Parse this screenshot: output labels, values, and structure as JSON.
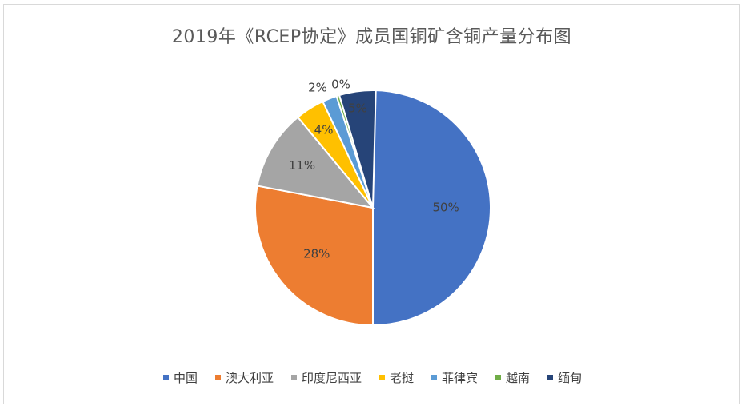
{
  "chart_data": {
    "type": "pie",
    "title": "2019年《RCEP协定》成员国铜矿含铜产量分布图",
    "categories": [
      "中国",
      "澳大利亚",
      "印度尼西亚",
      "老挝",
      "菲律宾",
      "越南",
      "缅甸"
    ],
    "values": [
      50,
      28,
      11,
      4,
      2,
      0,
      5
    ],
    "data_labels": [
      "50%",
      "28%",
      "11%",
      "4%",
      "2%",
      "0%",
      "5%"
    ],
    "colors": [
      "#4472C4",
      "#ED7D31",
      "#A5A5A5",
      "#FFC000",
      "#5B9BD5",
      "#70AD47",
      "#264478"
    ],
    "legend_position": "bottom"
  }
}
